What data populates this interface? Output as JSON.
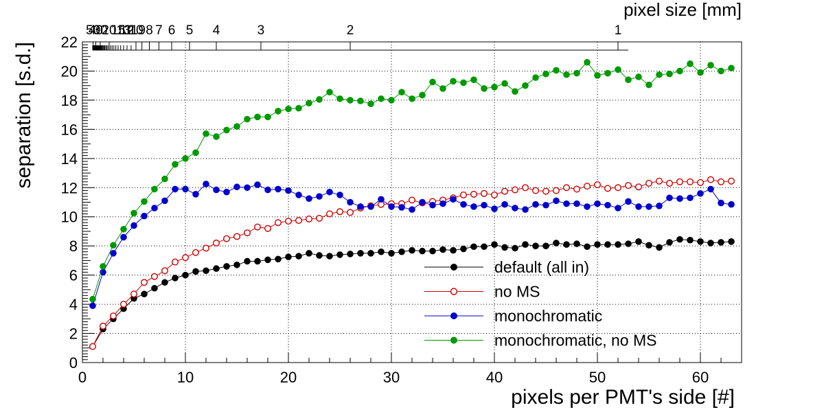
{
  "chart_data": {
    "type": "line",
    "xlabel": "pixels per PMT's side [#]",
    "ylabel": "separation [s.d.]",
    "top_axis_label": "pixel size [mm]",
    "xlim": [
      0,
      64
    ],
    "ylim": [
      0,
      22
    ],
    "x_ticks": [
      0,
      10,
      20,
      30,
      40,
      50,
      60
    ],
    "y_ticks": [
      0,
      2,
      4,
      6,
      8,
      10,
      12,
      14,
      16,
      18,
      20,
      22
    ],
    "grid": true,
    "legend_position": "bottom-right",
    "top_axis": {
      "note": "pixel size = 52 mm / pixels per side",
      "labels": [
        {
          "text": "1",
          "x": 52
        },
        {
          "text": "2",
          "x": 26
        },
        {
          "text": "3",
          "x": 17.33
        },
        {
          "text": "4",
          "x": 13
        },
        {
          "text": "5",
          "x": 10.4
        },
        {
          "text": "6",
          "x": 8.67
        },
        {
          "text": "7",
          "x": 7.43
        },
        {
          "text": "8",
          "x": 6.5
        },
        {
          "text": "9",
          "x": 5.78
        },
        {
          "text": "10",
          "x": 5.2
        },
        {
          "text": "11",
          "x": 4.73
        },
        {
          "text": "12",
          "x": 4.33
        },
        {
          "text": "13",
          "x": 4.0
        },
        {
          "text": "15",
          "x": 3.47
        },
        {
          "text": "20",
          "x": 2.6
        },
        {
          "text": "30",
          "x": 1.73
        },
        {
          "text": "40",
          "x": 1.3
        },
        {
          "text": "50",
          "x": 1.04
        }
      ]
    },
    "x": [
      1,
      2,
      3,
      4,
      5,
      6,
      7,
      8,
      9,
      10,
      11,
      12,
      13,
      14,
      15,
      16,
      17,
      18,
      19,
      20,
      21,
      22,
      23,
      24,
      25,
      26,
      27,
      28,
      29,
      30,
      31,
      32,
      33,
      34,
      35,
      36,
      37,
      38,
      39,
      40,
      41,
      42,
      43,
      44,
      45,
      46,
      47,
      48,
      49,
      50,
      51,
      52,
      53,
      54,
      55,
      56,
      57,
      58,
      59,
      60,
      61,
      62,
      63
    ],
    "series": [
      {
        "name": "default (all in)",
        "color": "#000000",
        "marker": "filled-circle",
        "values": [
          1.1,
          2.3,
          3.0,
          3.7,
          4.4,
          4.7,
          5.1,
          5.5,
          5.8,
          6.0,
          6.25,
          6.3,
          6.45,
          6.6,
          6.7,
          6.95,
          6.95,
          7.05,
          7.1,
          7.25,
          7.3,
          7.5,
          7.35,
          7.3,
          7.4,
          7.45,
          7.5,
          7.5,
          7.6,
          7.5,
          7.6,
          7.7,
          7.65,
          7.65,
          7.75,
          7.7,
          7.8,
          7.95,
          7.95,
          8.1,
          7.9,
          7.85,
          8.1,
          8.0,
          8.0,
          8.2,
          8.1,
          8.15,
          7.95,
          8.1,
          8.1,
          8.1,
          8.15,
          8.3,
          8.05,
          7.9,
          8.25,
          8.45,
          8.4,
          8.3,
          8.2,
          8.25,
          8.3
        ],
        "errors": [
          0.12,
          0.12,
          0.12,
          0.12,
          0.12,
          0.12,
          0.12,
          0.12,
          0.12,
          0.12,
          0.12,
          0.12,
          0.12,
          0.12,
          0.12,
          0.12,
          0.12,
          0.12,
          0.12,
          0.12,
          0.12,
          0.12,
          0.12,
          0.12,
          0.12,
          0.12,
          0.12,
          0.12,
          0.12,
          0.12,
          0.12,
          0.12,
          0.12,
          0.12,
          0.12,
          0.12,
          0.12,
          0.12,
          0.12,
          0.12,
          0.12,
          0.12,
          0.12,
          0.12,
          0.12,
          0.12,
          0.12,
          0.12,
          0.12,
          0.12,
          0.12,
          0.12,
          0.12,
          0.12,
          0.12,
          0.12,
          0.12,
          0.12,
          0.12,
          0.12,
          0.12,
          0.12,
          0.12
        ]
      },
      {
        "name": "no MS",
        "color": "#cc0000",
        "marker": "open-circle",
        "values": [
          1.1,
          2.5,
          3.2,
          4.0,
          4.7,
          5.5,
          5.9,
          6.3,
          6.9,
          7.2,
          7.55,
          7.85,
          8.2,
          8.5,
          8.65,
          8.9,
          9.3,
          9.2,
          9.6,
          9.7,
          9.75,
          9.85,
          9.9,
          10.2,
          10.35,
          10.3,
          10.6,
          10.75,
          10.85,
          10.9,
          10.9,
          11.15,
          10.95,
          11.05,
          11.15,
          11.3,
          11.5,
          11.55,
          11.6,
          11.5,
          11.75,
          11.85,
          12.0,
          11.8,
          11.75,
          11.8,
          12.0,
          11.9,
          12.1,
          12.2,
          11.95,
          12.0,
          12.15,
          12.05,
          12.3,
          12.45,
          12.3,
          12.4,
          12.4,
          12.35,
          12.55,
          12.4,
          12.45
        ],
        "errors": [
          0.12,
          0.12,
          0.12,
          0.12,
          0.12,
          0.12,
          0.12,
          0.12,
          0.12,
          0.12,
          0.12,
          0.12,
          0.12,
          0.12,
          0.12,
          0.12,
          0.12,
          0.12,
          0.12,
          0.12,
          0.12,
          0.12,
          0.12,
          0.12,
          0.12,
          0.12,
          0.12,
          0.12,
          0.12,
          0.12,
          0.12,
          0.12,
          0.12,
          0.12,
          0.12,
          0.12,
          0.12,
          0.12,
          0.12,
          0.12,
          0.12,
          0.12,
          0.12,
          0.12,
          0.12,
          0.12,
          0.12,
          0.12,
          0.12,
          0.12,
          0.12,
          0.12,
          0.12,
          0.12,
          0.12,
          0.12,
          0.12,
          0.12,
          0.12,
          0.12,
          0.12,
          0.12,
          0.12
        ]
      },
      {
        "name": "monochromatic",
        "color": "#0000cc",
        "marker": "filled-circle",
        "values": [
          3.9,
          6.2,
          7.5,
          8.6,
          9.4,
          10.05,
          10.6,
          11.1,
          11.9,
          11.9,
          11.55,
          12.25,
          11.85,
          11.7,
          12.05,
          12.0,
          12.2,
          11.85,
          11.9,
          11.8,
          11.5,
          11.25,
          11.4,
          11.7,
          11.5,
          11.0,
          10.7,
          10.7,
          11.2,
          10.7,
          10.65,
          10.5,
          11.0,
          10.8,
          10.9,
          11.2,
          10.85,
          10.7,
          10.8,
          10.55,
          10.85,
          10.6,
          10.5,
          10.85,
          10.8,
          11.1,
          10.9,
          10.9,
          10.7,
          10.9,
          10.8,
          10.6,
          11.05,
          10.7,
          10.7,
          10.75,
          11.3,
          11.25,
          11.3,
          11.6,
          11.9,
          10.95,
          10.85
        ],
        "errors": [
          0.15,
          0.15,
          0.15,
          0.15,
          0.15,
          0.15,
          0.15,
          0.15,
          0.15,
          0.15,
          0.15,
          0.15,
          0.15,
          0.15,
          0.15,
          0.15,
          0.15,
          0.15,
          0.15,
          0.15,
          0.15,
          0.15,
          0.15,
          0.15,
          0.15,
          0.15,
          0.15,
          0.15,
          0.15,
          0.15,
          0.15,
          0.15,
          0.15,
          0.15,
          0.15,
          0.15,
          0.15,
          0.15,
          0.15,
          0.15,
          0.15,
          0.15,
          0.15,
          0.15,
          0.15,
          0.15,
          0.15,
          0.15,
          0.15,
          0.15,
          0.15,
          0.15,
          0.15,
          0.15,
          0.15,
          0.15,
          0.15,
          0.15,
          0.15,
          0.15,
          0.15,
          0.15,
          0.15
        ]
      },
      {
        "name": "monochromatic, no MS",
        "color": "#009900",
        "marker": "filled-circle",
        "values": [
          4.35,
          6.6,
          8.05,
          9.15,
          10.25,
          11.05,
          11.9,
          12.6,
          13.6,
          14.0,
          14.4,
          15.7,
          15.5,
          15.95,
          16.2,
          16.7,
          16.85,
          16.85,
          17.25,
          17.4,
          17.45,
          17.8,
          18.05,
          18.55,
          18.1,
          18.0,
          17.95,
          17.75,
          18.1,
          18.0,
          18.55,
          18.1,
          18.35,
          19.25,
          18.8,
          19.3,
          19.2,
          19.4,
          18.8,
          18.9,
          19.15,
          18.6,
          19.0,
          19.55,
          19.8,
          20.05,
          19.75,
          19.85,
          20.6,
          19.7,
          19.85,
          20.1,
          19.4,
          19.6,
          19.05,
          19.75,
          19.8,
          20.0,
          20.5,
          19.9,
          20.4,
          20.0,
          20.2
        ],
        "errors": [
          0.2,
          0.2,
          0.2,
          0.2,
          0.2,
          0.2,
          0.2,
          0.2,
          0.2,
          0.2,
          0.2,
          0.2,
          0.2,
          0.2,
          0.2,
          0.2,
          0.2,
          0.2,
          0.2,
          0.2,
          0.2,
          0.2,
          0.2,
          0.2,
          0.2,
          0.2,
          0.2,
          0.2,
          0.2,
          0.2,
          0.2,
          0.2,
          0.2,
          0.2,
          0.2,
          0.2,
          0.2,
          0.2,
          0.2,
          0.2,
          0.2,
          0.2,
          0.2,
          0.2,
          0.2,
          0.2,
          0.2,
          0.2,
          0.2,
          0.2,
          0.2,
          0.2,
          0.2,
          0.2,
          0.2,
          0.2,
          0.2,
          0.2,
          0.2,
          0.2,
          0.2,
          0.2,
          0.2
        ]
      }
    ]
  }
}
